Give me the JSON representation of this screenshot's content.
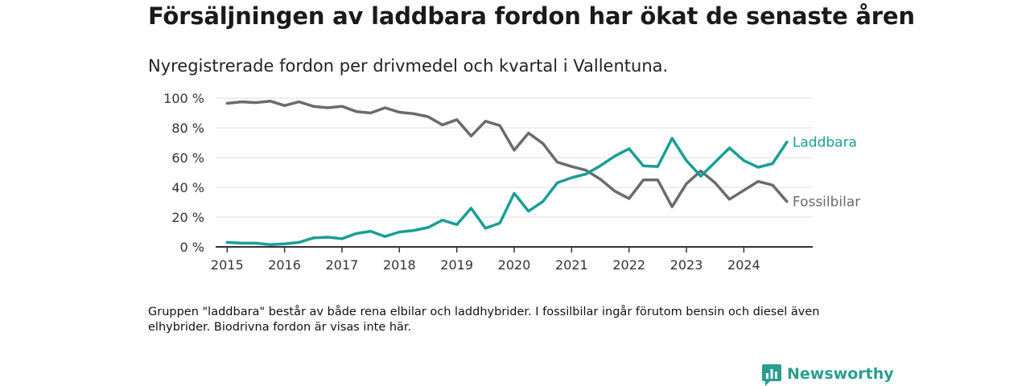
{
  "title": "Försäljningen av laddbara fordon har ökat de senaste åren",
  "subtitle": "Nyregistrerade fordon per drivmedel och kvartal i Vallentuna.",
  "note": "Gruppen \"laddbara\" består av både rena elbilar och laddhybrider. I fossilbilar ingår förutom bensin och diesel även elhybrider. Biodrivna fordon är visas inte här.",
  "brand": {
    "name": "Newsworthy",
    "icon": "newsworthy-logo-icon"
  },
  "colors": {
    "laddbara": "#1a9e96",
    "fossil": "#6b6a70",
    "grid": "#dddddd",
    "axis": "#333333"
  },
  "chart_data": {
    "type": "line",
    "title": "Försäljningen av laddbara fordon har ökat de senaste åren",
    "subtitle": "Nyregistrerade fordon per drivmedel och kvartal i Vallentuna.",
    "xlabel": "",
    "ylabel": "",
    "ylim": [
      0,
      100
    ],
    "xlim": [
      2014.8,
      2025.2
    ],
    "y_ticks": [
      0,
      20,
      40,
      60,
      80,
      100
    ],
    "y_tick_labels": [
      "0 %",
      "20 %",
      "40 %",
      "60 %",
      "80 %",
      "100 %"
    ],
    "x_ticks": [
      2015,
      2016,
      2017,
      2018,
      2019,
      2020,
      2021,
      2022,
      2023,
      2024
    ],
    "x_tick_labels": [
      "2015",
      "2016",
      "2017",
      "2018",
      "2019",
      "2020",
      "2021",
      "2022",
      "2023",
      "2024"
    ],
    "x": [
      2015.0,
      2015.25,
      2015.5,
      2015.75,
      2016.0,
      2016.25,
      2016.5,
      2016.75,
      2017.0,
      2017.25,
      2017.5,
      2017.75,
      2018.0,
      2018.25,
      2018.5,
      2018.75,
      2019.0,
      2019.25,
      2019.5,
      2019.75,
      2020.0,
      2020.25,
      2020.5,
      2020.75,
      2021.0,
      2021.25,
      2021.5,
      2021.75,
      2022.0,
      2022.25,
      2022.5,
      2022.75,
      2023.0,
      2023.25,
      2023.5,
      2023.75,
      2024.0,
      2024.25,
      2024.5,
      2024.75
    ],
    "series": [
      {
        "name": "Laddbara",
        "label": "Laddbara",
        "color": "#1a9e96",
        "values": [
          3,
          2.5,
          2.5,
          1.5,
          2,
          3,
          6,
          6.5,
          5.5,
          9,
          10.5,
          7,
          10,
          11,
          13,
          18,
          15,
          26,
          12.5,
          16,
          36,
          24,
          30.5,
          43,
          46.5,
          49,
          54.5,
          61,
          66,
          54.5,
          54,
          73,
          58,
          47.5,
          57,
          66.5,
          58,
          53.5,
          56,
          70.5
        ]
      },
      {
        "name": "Fossilbilar",
        "label": "Fossilbilar",
        "color": "#6b6a70",
        "values": [
          96.5,
          97.5,
          97,
          98,
          95,
          97.5,
          94.5,
          93.5,
          94.5,
          91,
          90,
          93.5,
          90.5,
          89.5,
          87.5,
          82,
          85.5,
          74.5,
          84.5,
          81.5,
          65,
          76.5,
          69.5,
          57,
          54,
          51.5,
          45.5,
          37.5,
          32.5,
          45,
          45,
          27,
          42.5,
          51,
          43,
          32,
          38,
          44,
          41.5,
          30.5
        ]
      }
    ]
  }
}
